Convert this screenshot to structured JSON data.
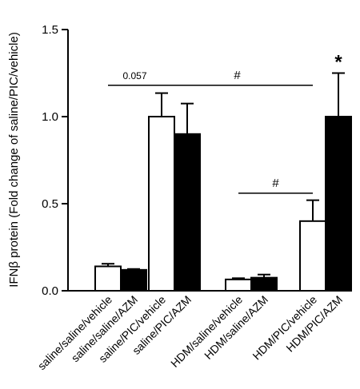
{
  "chart_data": {
    "type": "bar",
    "ylabel": "IFNβ protein (Fold change of saline/PIC/vehicle)",
    "ylim": [
      0,
      1.5
    ],
    "yticks": [
      "0.0",
      "0.5",
      "1.0",
      "1.5"
    ],
    "yticks_values": [
      0,
      0.5,
      1.0,
      1.5
    ],
    "grid": false,
    "categories": [
      "saline/saline/vehicle",
      "saline/saline/AZM",
      "saline/PIC/vehicle",
      "saline/PIC/AZM",
      "HDM/saline/vehicle",
      "HDM/saline/AZM",
      "HDM/PIC/vehicle",
      "HDM/PIC/AZM"
    ],
    "values": [
      0.14,
      0.12,
      1.0,
      0.9,
      0.065,
      0.075,
      0.4,
      1.0
    ],
    "errors": [
      0.015,
      0.005,
      0.135,
      0.175,
      0.007,
      0.018,
      0.12,
      0.25
    ],
    "fills": [
      "white",
      "black",
      "white",
      "black",
      "white",
      "black",
      "white",
      "black"
    ],
    "annotations": [
      {
        "text": "0.057",
        "from": 0,
        "to": 2,
        "y": 1.18
      },
      {
        "text": "#",
        "from": 2,
        "to": 6,
        "y": 1.18
      },
      {
        "text": "#",
        "from": 4,
        "to": 6,
        "y": 0.56
      },
      {
        "text": "*",
        "bar": 7
      }
    ]
  }
}
